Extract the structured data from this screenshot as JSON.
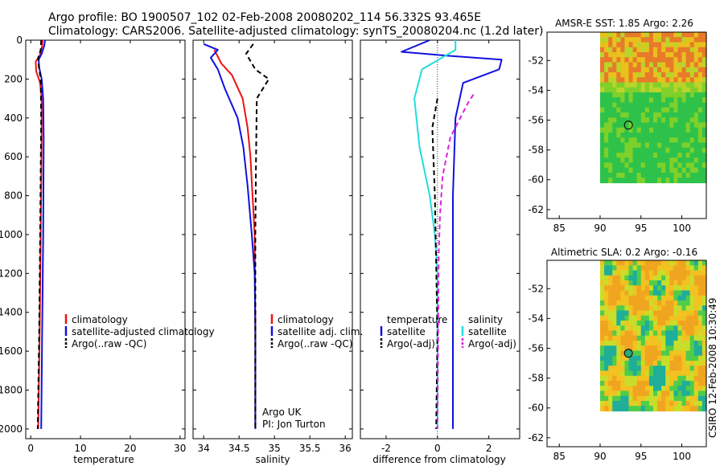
{
  "header": {
    "line1": "Argo profile: BO 1900507_102 02-Feb-2008 20080202_114 56.332S 93.465E",
    "line2": "Climatology: CARS2006. Satellite-adjusted climatology: synTS_20080204.nc (1.2d later)"
  },
  "side_stamp": "CSIRO 12-Feb-2008 10:30:49",
  "colors": {
    "red": "#ee1111",
    "blue": "#1111dd",
    "black": "#000000",
    "cyan": "#22dddd",
    "magenta": "#dd22dd"
  },
  "chart_data": [
    {
      "type": "line",
      "xlabel": "temperature",
      "xlim": [
        -1,
        31
      ],
      "xticks": [
        0,
        10,
        20,
        30
      ],
      "ylim": [
        2050,
        0
      ],
      "yticks": [
        0,
        200,
        400,
        600,
        800,
        1000,
        1200,
        1400,
        1600,
        1800,
        2000
      ],
      "series": [
        {
          "name": "climatology",
          "color": "#ee1111",
          "dash": "",
          "points": [
            [
              2.4,
              0
            ],
            [
              2.3,
              30
            ],
            [
              1.8,
              80
            ],
            [
              1.0,
              110
            ],
            [
              1.1,
              160
            ],
            [
              1.9,
              220
            ],
            [
              2.2,
              300
            ],
            [
              2.2,
              500
            ],
            [
              2.0,
              1000
            ],
            [
              1.8,
              1500
            ],
            [
              1.5,
              2000
            ]
          ]
        },
        {
          "name": "satellite-adjusted climatology",
          "color": "#1111dd",
          "dash": "",
          "points": [
            [
              2.9,
              0
            ],
            [
              2.7,
              30
            ],
            [
              2.2,
              70
            ],
            [
              1.6,
              100
            ],
            [
              1.7,
              140
            ],
            [
              2.2,
              200
            ],
            [
              2.5,
              300
            ],
            [
              2.6,
              500
            ],
            [
              2.5,
              1000
            ],
            [
              2.3,
              1500
            ],
            [
              2.1,
              2000
            ]
          ]
        },
        {
          "name": "Argo(..raw -QC)",
          "color": "#000000",
          "dash": "6,4",
          "points": [
            [
              2.1,
              0
            ],
            [
              2.0,
              50
            ],
            [
              1.5,
              90
            ],
            [
              1.6,
              130
            ],
            [
              2.0,
              200
            ],
            [
              2.1,
              400
            ],
            [
              1.9,
              1000
            ],
            [
              1.7,
              1500
            ],
            [
              1.4,
              2000
            ]
          ]
        }
      ],
      "legend": [
        {
          "label": "climatology",
          "color": "#ee1111",
          "dash": ""
        },
        {
          "label": "satellite-adjusted climatology",
          "color": "#1111dd",
          "dash": ""
        },
        {
          "label": "Argo(..raw -QC)",
          "color": "#000000",
          "dash": "6,4"
        }
      ],
      "legend_position": "lower-right"
    },
    {
      "type": "line",
      "xlabel": "salinity",
      "xlim": [
        33.85,
        36.1
      ],
      "xticks": [
        34,
        34.5,
        35,
        35.5,
        36
      ],
      "ylim": [
        2050,
        0
      ],
      "yticks": [
        0,
        200,
        400,
        600,
        800,
        1000,
        1200,
        1400,
        1600,
        1800,
        2000
      ],
      "series": [
        {
          "name": "climatology",
          "color": "#ee1111",
          "dash": "",
          "points": [
            [
              34.15,
              50
            ],
            [
              34.25,
              120
            ],
            [
              34.4,
              180
            ],
            [
              34.55,
              300
            ],
            [
              34.62,
              450
            ],
            [
              34.66,
              600
            ],
            [
              34.69,
              800
            ],
            [
              34.72,
              1000
            ],
            [
              34.73,
              1500
            ],
            [
              34.73,
              2000
            ]
          ]
        },
        {
          "name": "satellite adj. clim.",
          "color": "#1111dd",
          "dash": "",
          "points": [
            [
              34.0,
              20
            ],
            [
              34.2,
              50
            ],
            [
              34.1,
              90
            ],
            [
              34.2,
              150
            ],
            [
              34.3,
              250
            ],
            [
              34.48,
              400
            ],
            [
              34.56,
              550
            ],
            [
              34.62,
              750
            ],
            [
              34.68,
              1000
            ],
            [
              34.72,
              1200
            ],
            [
              34.73,
              1500
            ],
            [
              34.73,
              2000
            ]
          ]
        },
        {
          "name": "Argo(..raw -QC)",
          "color": "#000000",
          "dash": "6,4",
          "points": [
            [
              34.7,
              20
            ],
            [
              34.6,
              70
            ],
            [
              34.73,
              150
            ],
            [
              34.92,
              200
            ],
            [
              34.75,
              300
            ],
            [
              34.74,
              600
            ],
            [
              34.73,
              1000
            ],
            [
              34.73,
              2000
            ]
          ]
        }
      ],
      "legend": [
        {
          "label": "climatology",
          "color": "#ee1111",
          "dash": ""
        },
        {
          "label": "satellite adj. clim.",
          "color": "#1111dd",
          "dash": ""
        },
        {
          "label": "Argo(..raw -QC)",
          "color": "#000000",
          "dash": "6,4"
        }
      ],
      "legend_position": "lower-right",
      "notes": [
        "Argo UK",
        "PI: Jon Turton"
      ]
    },
    {
      "type": "line",
      "xlabel": "difference from climatology",
      "xlim": [
        -3,
        3.2
      ],
      "xticks": [
        -2,
        0,
        2
      ],
      "ylim": [
        2050,
        0
      ],
      "yticks": [
        0,
        200,
        400,
        600,
        800,
        1000,
        1200,
        1400,
        1600,
        1800,
        2000
      ],
      "series": [
        {
          "name": "temperature satellite",
          "color": "#1111dd",
          "dash": "",
          "points": [
            [
              -0.3,
              0
            ],
            [
              -1.4,
              60
            ],
            [
              0.4,
              80
            ],
            [
              2.5,
              100
            ],
            [
              2.4,
              150
            ],
            [
              1.0,
              220
            ],
            [
              0.7,
              400
            ],
            [
              0.6,
              800
            ],
            [
              0.6,
              1500
            ],
            [
              0.6,
              2000
            ]
          ]
        },
        {
          "name": "salinity satellite",
          "color": "#22dddd",
          "dash": "",
          "points": [
            [
              0.7,
              0
            ],
            [
              0.7,
              50
            ],
            [
              -0.6,
              150
            ],
            [
              -0.9,
              300
            ],
            [
              -0.7,
              550
            ],
            [
              -0.3,
              800
            ],
            [
              -0.1,
              1000
            ],
            [
              0.0,
              1200
            ],
            [
              0.0,
              2000
            ]
          ]
        },
        {
          "name": "temperature Argo(-adj)",
          "color": "#000000",
          "dash": "6,4",
          "points": [
            [
              0.0,
              300
            ],
            [
              -0.2,
              450
            ],
            [
              -0.1,
              800
            ],
            [
              0.0,
              1500
            ],
            [
              -0.05,
              2000
            ]
          ]
        },
        {
          "name": "salinity Argo(-adj)",
          "color": "#dd22dd",
          "dash": "6,4",
          "points": [
            [
              1.4,
              280
            ],
            [
              1.2,
              320
            ],
            [
              0.5,
              500
            ],
            [
              0.2,
              700
            ],
            [
              0.1,
              900
            ],
            [
              0.05,
              1100
            ],
            [
              0.0,
              2000
            ]
          ]
        }
      ],
      "legend_temperature": {
        "title": "temperature",
        "items": [
          {
            "label": "satellite",
            "color": "#1111dd",
            "dash": ""
          },
          {
            "label": "Argo(-adj)",
            "color": "#000000",
            "dash": "6,4"
          }
        ]
      },
      "legend_salinity": {
        "title": "salinity",
        "items": [
          {
            "label": "satellite",
            "color": "#22dddd",
            "dash": ""
          },
          {
            "label": "Argo(-adj)",
            "color": "#dd22dd",
            "dash": "6,4"
          }
        ]
      },
      "legend_position": "lower-center"
    },
    {
      "type": "heatmap",
      "title": "AMSR-E SST: 1.85 Argo: 2.26",
      "xlim": [
        83.5,
        103
      ],
      "ylim": [
        -62.6,
        -50.1
      ],
      "xticks": [
        85,
        90,
        95,
        100
      ],
      "yticks": [
        -52,
        -54,
        -56,
        -58,
        -60,
        -62
      ],
      "data_extent": {
        "lon": [
          90,
          103
        ],
        "lat": [
          -60.2,
          -50.1
        ]
      },
      "float_marker": {
        "lon": 93.465,
        "lat": -56.332
      },
      "palette": [
        "#e87a2a",
        "#e8c11c",
        "#b9d42b",
        "#7fd02a",
        "#2ec24a"
      ]
    },
    {
      "type": "heatmap",
      "title": "Altimetric SLA: 0.2 Argo: -0.16",
      "xlim": [
        83.5,
        103
      ],
      "ylim": [
        -62.6,
        -50.1
      ],
      "xticks": [
        85,
        90,
        95,
        100
      ],
      "yticks": [
        -52,
        -54,
        -56,
        -58,
        -60,
        -62
      ],
      "data_extent": {
        "lon": [
          90,
          103
        ],
        "lat": [
          -60.2,
          -50.1
        ]
      },
      "float_marker": {
        "lon": 93.465,
        "lat": -56.332
      },
      "palette": [
        "#f0a520",
        "#f2c220",
        "#c8de2a",
        "#4fcc4a",
        "#1fae9a"
      ]
    }
  ]
}
